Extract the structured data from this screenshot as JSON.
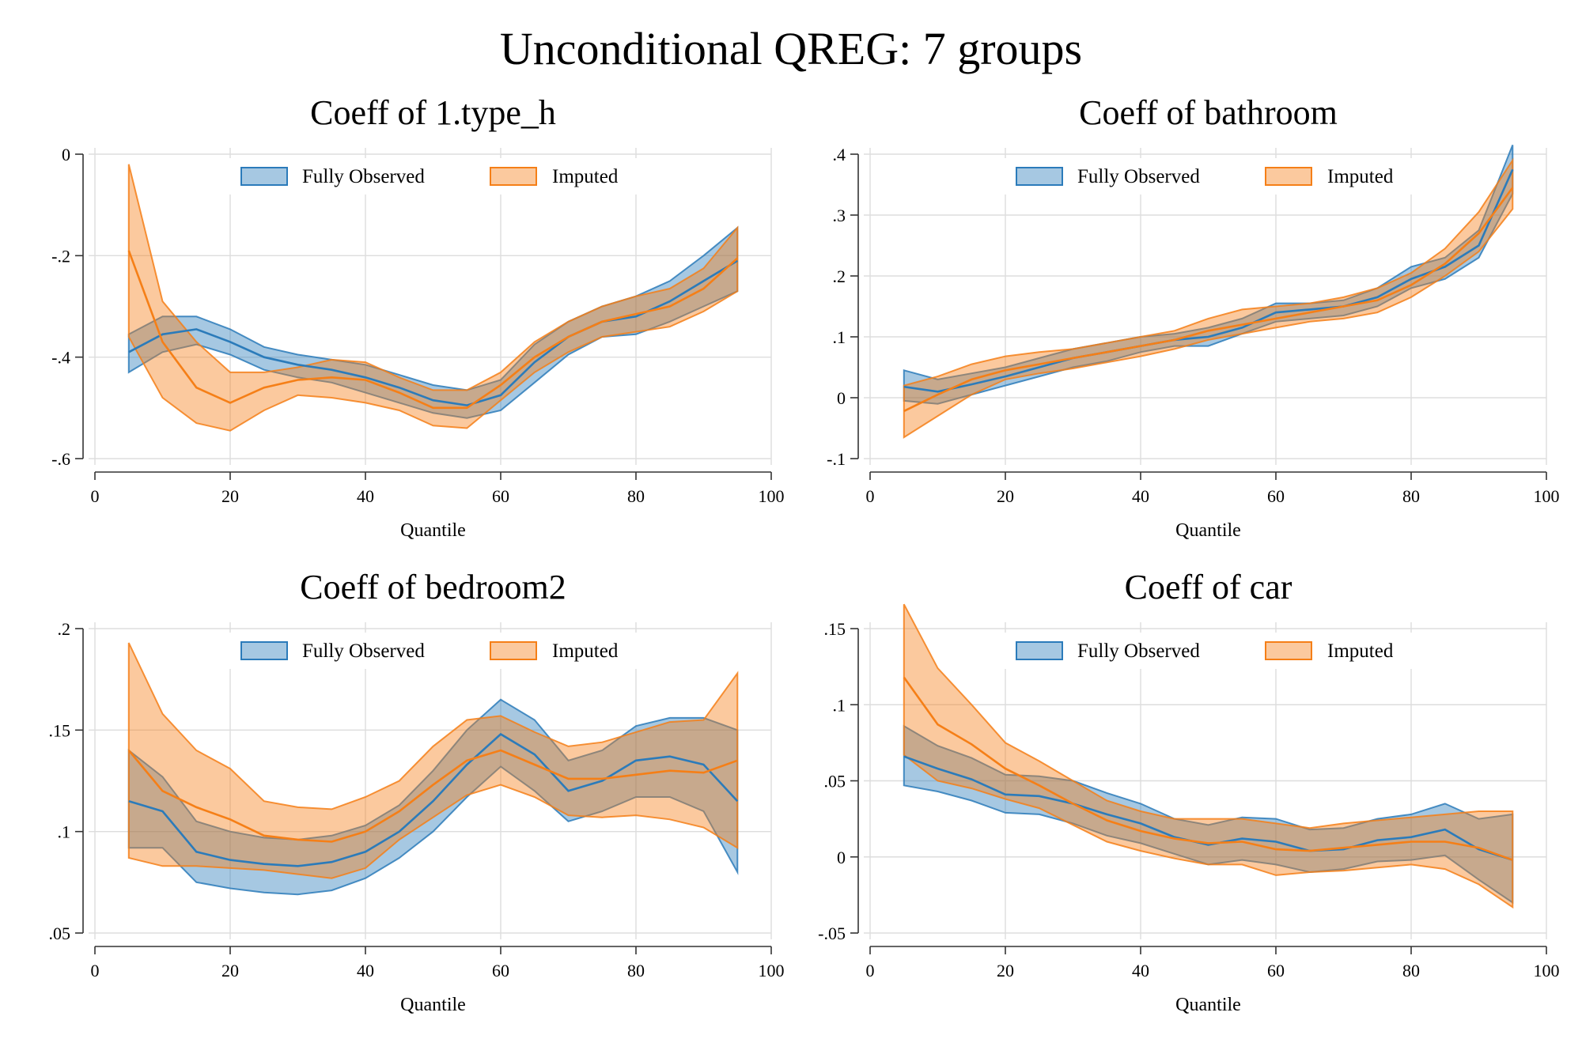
{
  "title": "Unconditional QREG: 7 groups",
  "colors": {
    "observed": "#2b7bba",
    "imputed": "#f57f17",
    "grid": "#dddddd",
    "axis": "#333333"
  },
  "chart_data": [
    {
      "type": "area",
      "title": "Coeff of 1.type_h",
      "xlabel": "Quantile",
      "ylabel": "",
      "xlim": [
        0,
        100
      ],
      "ylim": [
        -0.6,
        0
      ],
      "xticks": [
        0,
        20,
        40,
        60,
        80,
        100
      ],
      "yticks": [
        -0.6,
        -0.4,
        -0.2,
        0
      ],
      "ytick_labels": [
        "-.6",
        "-.4",
        "-.2",
        "0"
      ],
      "grid": true,
      "legend": [
        "Fully Observed",
        "Imputed"
      ],
      "legend_position": "top",
      "x": [
        5,
        10,
        15,
        20,
        25,
        30,
        35,
        40,
        45,
        50,
        55,
        60,
        65,
        70,
        75,
        80,
        85,
        90,
        95
      ],
      "series": [
        {
          "name": "Fully Observed",
          "estimate": [
            -0.39,
            -0.355,
            -0.345,
            -0.37,
            -0.4,
            -0.415,
            -0.425,
            -0.44,
            -0.46,
            -0.485,
            -0.495,
            -0.475,
            -0.41,
            -0.36,
            -0.33,
            -0.32,
            -0.29,
            -0.25,
            -0.21
          ],
          "lower": [
            -0.43,
            -0.39,
            -0.375,
            -0.395,
            -0.425,
            -0.44,
            -0.45,
            -0.47,
            -0.49,
            -0.51,
            -0.52,
            -0.505,
            -0.45,
            -0.395,
            -0.36,
            -0.355,
            -0.33,
            -0.3,
            -0.27
          ],
          "upper": [
            -0.355,
            -0.32,
            -0.32,
            -0.345,
            -0.38,
            -0.395,
            -0.405,
            -0.415,
            -0.435,
            -0.455,
            -0.465,
            -0.445,
            -0.375,
            -0.33,
            -0.3,
            -0.28,
            -0.25,
            -0.2,
            -0.145
          ]
        },
        {
          "name": "Imputed",
          "estimate": [
            -0.19,
            -0.37,
            -0.46,
            -0.49,
            -0.46,
            -0.445,
            -0.44,
            -0.445,
            -0.47,
            -0.5,
            -0.5,
            -0.455,
            -0.4,
            -0.36,
            -0.33,
            -0.315,
            -0.3,
            -0.265,
            -0.205
          ],
          "lower": [
            -0.36,
            -0.48,
            -0.53,
            -0.545,
            -0.505,
            -0.475,
            -0.48,
            -0.49,
            -0.505,
            -0.535,
            -0.54,
            -0.485,
            -0.43,
            -0.39,
            -0.36,
            -0.35,
            -0.34,
            -0.31,
            -0.27
          ],
          "upper": [
            -0.02,
            -0.29,
            -0.37,
            -0.43,
            -0.43,
            -0.42,
            -0.405,
            -0.41,
            -0.44,
            -0.465,
            -0.465,
            -0.43,
            -0.37,
            -0.33,
            -0.3,
            -0.28,
            -0.265,
            -0.225,
            -0.145
          ]
        }
      ]
    },
    {
      "type": "area",
      "title": "Coeff of bathroom",
      "xlabel": "Quantile",
      "ylabel": "",
      "xlim": [
        0,
        100
      ],
      "ylim": [
        -0.1,
        0.4
      ],
      "xticks": [
        0,
        20,
        40,
        60,
        80,
        100
      ],
      "yticks": [
        -0.1,
        0,
        0.1,
        0.2,
        0.3,
        0.4
      ],
      "ytick_labels": [
        "-.1",
        "0",
        ".1",
        ".2",
        ".3",
        ".4"
      ],
      "grid": true,
      "legend": [
        "Fully Observed",
        "Imputed"
      ],
      "legend_position": "top",
      "x": [
        5,
        10,
        15,
        20,
        25,
        30,
        35,
        40,
        45,
        50,
        55,
        60,
        65,
        70,
        75,
        80,
        85,
        90,
        95
      ],
      "series": [
        {
          "name": "Fully Observed",
          "estimate": [
            0.018,
            0.01,
            0.022,
            0.035,
            0.05,
            0.065,
            0.075,
            0.085,
            0.095,
            0.1,
            0.115,
            0.14,
            0.145,
            0.15,
            0.165,
            0.195,
            0.215,
            0.25,
            0.375
          ],
          "lower": [
            -0.005,
            -0.01,
            0.005,
            0.02,
            0.035,
            0.05,
            0.06,
            0.075,
            0.085,
            0.085,
            0.105,
            0.125,
            0.13,
            0.135,
            0.15,
            0.18,
            0.195,
            0.23,
            0.335
          ],
          "upper": [
            0.045,
            0.03,
            0.04,
            0.05,
            0.065,
            0.08,
            0.09,
            0.1,
            0.105,
            0.115,
            0.13,
            0.155,
            0.155,
            0.16,
            0.18,
            0.215,
            0.23,
            0.275,
            0.415
          ]
        },
        {
          "name": "Imputed",
          "estimate": [
            -0.022,
            0.005,
            0.03,
            0.045,
            0.055,
            0.065,
            0.075,
            0.085,
            0.095,
            0.11,
            0.12,
            0.13,
            0.14,
            0.15,
            0.16,
            0.185,
            0.22,
            0.27,
            0.345
          ],
          "lower": [
            -0.065,
            -0.03,
            0.005,
            0.03,
            0.04,
            0.048,
            0.058,
            0.068,
            0.08,
            0.095,
            0.105,
            0.115,
            0.125,
            0.13,
            0.14,
            0.165,
            0.2,
            0.24,
            0.31
          ],
          "upper": [
            0.02,
            0.035,
            0.055,
            0.068,
            0.075,
            0.08,
            0.09,
            0.1,
            0.11,
            0.13,
            0.145,
            0.15,
            0.155,
            0.165,
            0.18,
            0.205,
            0.245,
            0.305,
            0.39
          ]
        }
      ]
    },
    {
      "type": "area",
      "title": "Coeff of bedroom2",
      "xlabel": "Quantile",
      "ylabel": "",
      "xlim": [
        0,
        100
      ],
      "ylim": [
        0.05,
        0.2
      ],
      "xticks": [
        0,
        20,
        40,
        60,
        80,
        100
      ],
      "yticks": [
        0.05,
        0.1,
        0.15,
        0.2
      ],
      "ytick_labels": [
        ".05",
        ".1",
        ".15",
        ".2"
      ],
      "grid": true,
      "legend": [
        "Fully Observed",
        "Imputed"
      ],
      "legend_position": "top",
      "x": [
        5,
        10,
        15,
        20,
        25,
        30,
        35,
        40,
        45,
        50,
        55,
        60,
        65,
        70,
        75,
        80,
        85,
        90,
        95
      ],
      "series": [
        {
          "name": "Fully Observed",
          "estimate": [
            0.115,
            0.11,
            0.09,
            0.086,
            0.084,
            0.083,
            0.085,
            0.09,
            0.1,
            0.115,
            0.133,
            0.148,
            0.138,
            0.12,
            0.125,
            0.135,
            0.137,
            0.133,
            0.115
          ],
          "lower": [
            0.092,
            0.092,
            0.075,
            0.072,
            0.07,
            0.069,
            0.071,
            0.077,
            0.087,
            0.1,
            0.117,
            0.132,
            0.12,
            0.105,
            0.11,
            0.117,
            0.117,
            0.11,
            0.08
          ],
          "upper": [
            0.14,
            0.127,
            0.105,
            0.1,
            0.097,
            0.096,
            0.098,
            0.103,
            0.113,
            0.13,
            0.15,
            0.165,
            0.155,
            0.135,
            0.14,
            0.152,
            0.156,
            0.156,
            0.15
          ]
        },
        {
          "name": "Imputed",
          "estimate": [
            0.14,
            0.12,
            0.112,
            0.106,
            0.098,
            0.096,
            0.095,
            0.1,
            0.11,
            0.123,
            0.135,
            0.14,
            0.133,
            0.126,
            0.126,
            0.128,
            0.13,
            0.129,
            0.135
          ],
          "lower": [
            0.087,
            0.083,
            0.083,
            0.082,
            0.081,
            0.079,
            0.077,
            0.082,
            0.096,
            0.107,
            0.118,
            0.123,
            0.117,
            0.108,
            0.107,
            0.108,
            0.106,
            0.102,
            0.092
          ],
          "upper": [
            0.193,
            0.158,
            0.14,
            0.131,
            0.115,
            0.112,
            0.111,
            0.117,
            0.125,
            0.142,
            0.155,
            0.157,
            0.149,
            0.142,
            0.144,
            0.149,
            0.154,
            0.155,
            0.178
          ]
        }
      ]
    },
    {
      "type": "area",
      "title": "Coeff of car",
      "xlabel": "Quantile",
      "ylabel": "",
      "xlim": [
        0,
        100
      ],
      "ylim": [
        -0.05,
        0.15
      ],
      "xticks": [
        0,
        20,
        40,
        60,
        80,
        100
      ],
      "yticks": [
        -0.05,
        0,
        0.05,
        0.1,
        0.15
      ],
      "ytick_labels": [
        "-.05",
        "0",
        ".05",
        ".1",
        ".15"
      ],
      "grid": true,
      "legend": [
        "Fully Observed",
        "Imputed"
      ],
      "legend_position": "top",
      "x": [
        5,
        10,
        15,
        20,
        25,
        30,
        35,
        40,
        45,
        50,
        55,
        60,
        65,
        70,
        75,
        80,
        85,
        90,
        95
      ],
      "series": [
        {
          "name": "Fully Observed",
          "estimate": [
            0.066,
            0.058,
            0.051,
            0.041,
            0.04,
            0.035,
            0.028,
            0.022,
            0.013,
            0.008,
            0.012,
            0.01,
            0.004,
            0.005,
            0.011,
            0.013,
            0.018,
            0.005,
            -0.002
          ],
          "lower": [
            0.047,
            0.043,
            0.037,
            0.029,
            0.028,
            0.022,
            0.014,
            0.009,
            0.002,
            -0.005,
            -0.002,
            -0.005,
            -0.01,
            -0.008,
            -0.003,
            -0.002,
            0.001,
            -0.015,
            -0.03
          ],
          "upper": [
            0.086,
            0.073,
            0.065,
            0.054,
            0.053,
            0.05,
            0.042,
            0.035,
            0.025,
            0.021,
            0.026,
            0.025,
            0.018,
            0.019,
            0.025,
            0.028,
            0.035,
            0.025,
            0.028
          ]
        },
        {
          "name": "Imputed",
          "estimate": [
            0.118,
            0.087,
            0.074,
            0.058,
            0.047,
            0.035,
            0.024,
            0.017,
            0.012,
            0.009,
            0.01,
            0.005,
            0.004,
            0.006,
            0.008,
            0.01,
            0.01,
            0.006,
            -0.002
          ],
          "lower": [
            0.067,
            0.05,
            0.045,
            0.038,
            0.032,
            0.021,
            0.01,
            0.004,
            -0.001,
            -0.005,
            -0.005,
            -0.012,
            -0.01,
            -0.009,
            -0.007,
            -0.005,
            -0.008,
            -0.018,
            -0.033
          ],
          "upper": [
            0.166,
            0.124,
            0.1,
            0.075,
            0.063,
            0.05,
            0.037,
            0.03,
            0.025,
            0.025,
            0.025,
            0.022,
            0.019,
            0.022,
            0.024,
            0.026,
            0.028,
            0.03,
            0.03
          ]
        }
      ]
    }
  ]
}
